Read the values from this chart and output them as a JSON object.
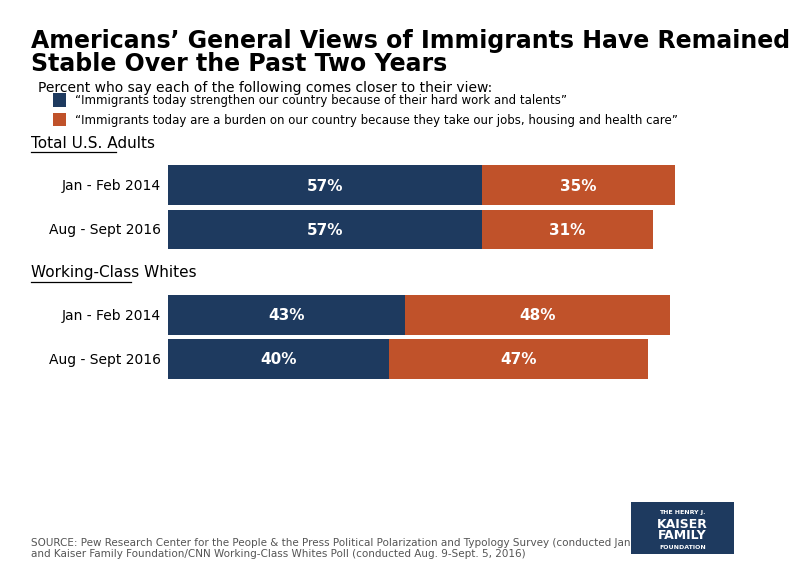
{
  "title_line1": "Americans’ General Views of Immigrants Have Remained",
  "title_line2": "Stable Over the Past Two Years",
  "subtitle": "Percent who say each of the following comes closer to their view:",
  "legend_items": [
    "“Immigrants today strengthen our country because of their hard work and talents”",
    "“Immigrants today are a burden on our country because they take our jobs, housing and health care”"
  ],
  "color_strengthen": "#1e3a5f",
  "color_burden": "#c0522a",
  "groups": [
    {
      "label": "Total U.S. Adults",
      "rows": [
        {
          "year": "Jan - Feb 2014",
          "strengthen": 57,
          "burden": 35
        },
        {
          "year": "Aug - Sept 2016",
          "strengthen": 57,
          "burden": 31
        }
      ]
    },
    {
      "label": "Working-Class Whites",
      "rows": [
        {
          "year": "Jan - Feb 2014",
          "strengthen": 43,
          "burden": 48
        },
        {
          "year": "Aug - Sept 2016",
          "strengthen": 40,
          "burden": 47
        }
      ]
    }
  ],
  "source_text": "SOURCE: Pew Research Center for the People & the Press Political Polarization and Typology Survey (conducted Jan. 23-Feb. 9, 2014)\nand Kaiser Family Foundation/CNN Working-Class Whites Poll (conducted Aug. 9-Sept. 5, 2016)",
  "background_color": "#ffffff",
  "bar_text_color": "#ffffff",
  "bar_fontsize": 11,
  "label_fontsize": 10,
  "title_fontsize": 17,
  "subtitle_fontsize": 10,
  "group_label_fontsize": 11,
  "source_fontsize": 7.5,
  "logo_color": "#1e3a5f"
}
